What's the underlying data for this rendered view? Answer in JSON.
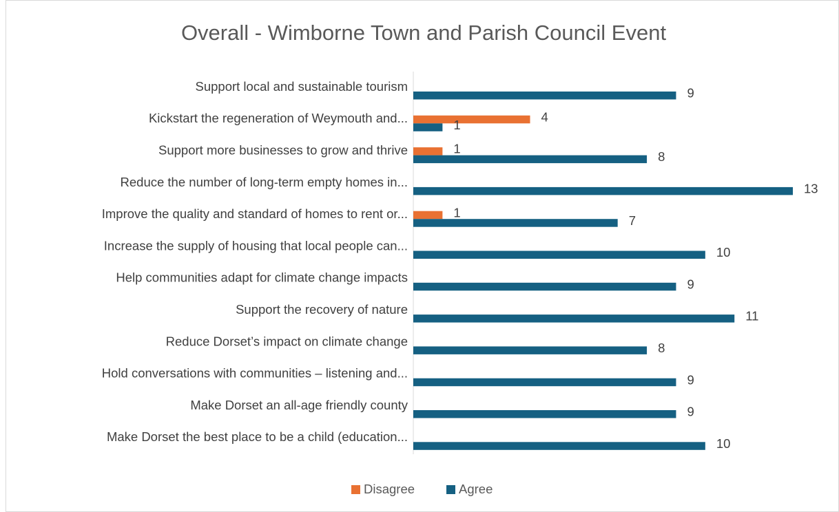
{
  "chart_data": {
    "type": "hbar",
    "title": "Overall - Wimborne Town and Parish Council Event",
    "categories": [
      "Support local and sustainable tourism",
      "Kickstart the regeneration of Weymouth and...",
      "Support more businesses to grow and thrive",
      "Reduce the number of long-term empty homes in...",
      "Improve the quality and standard of homes to rent or...",
      "Increase the supply of housing that local people can...",
      "Help communities adapt for climate change impacts",
      "Support the recovery of nature",
      "Reduce Dorset’s impact on climate change",
      "Hold conversations with communities – listening and...",
      "Make Dorset an all-age friendly county",
      "Make Dorset the best place to be a child (education..."
    ],
    "series": [
      {
        "name": "Disagree",
        "color": "#e97132",
        "values": [
          null,
          4,
          1,
          null,
          1,
          null,
          null,
          null,
          null,
          null,
          null,
          null
        ]
      },
      {
        "name": "Agree",
        "color": "#156082",
        "values": [
          9,
          1,
          8,
          13,
          7,
          10,
          9,
          11,
          8,
          9,
          9,
          10
        ]
      }
    ],
    "xlim": [
      0,
      13
    ],
    "legend": "bottom"
  }
}
